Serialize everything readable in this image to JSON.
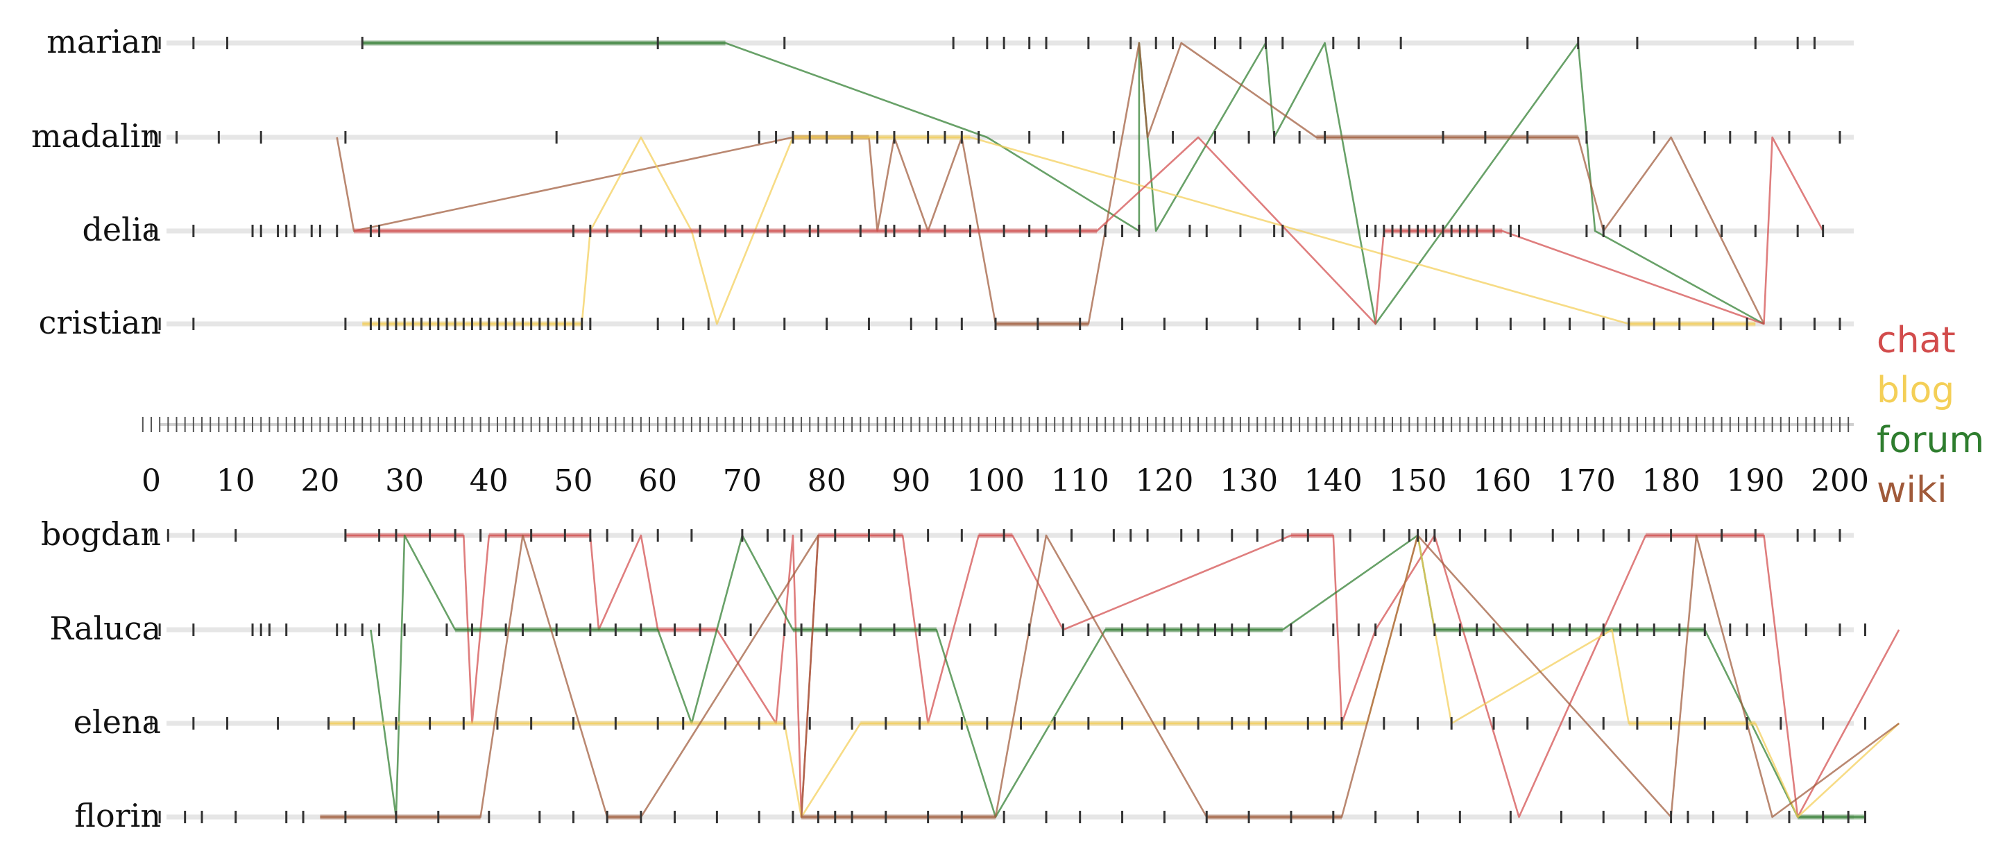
{
  "chart_data": {
    "type": "line",
    "title": "",
    "xlabel": "",
    "ylabel": "",
    "xlim": [
      0,
      206
    ],
    "x_ticks": [
      0,
      10,
      20,
      30,
      40,
      50,
      60,
      70,
      80,
      90,
      100,
      110,
      120,
      130,
      140,
      150,
      160,
      170,
      180,
      190,
      200
    ],
    "legend": {
      "placement": "right",
      "entries": [
        {
          "name": "chat",
          "color": "#d24c4c"
        },
        {
          "name": "blog",
          "color": "#f4cf57"
        },
        {
          "name": "forum",
          "color": "#2e7d2e"
        },
        {
          "name": "wiki",
          "color": "#a05a3a"
        }
      ]
    },
    "panels": [
      {
        "lanes": [
          "marian",
          "madalin",
          "delia",
          "cristian"
        ],
        "events": {
          "marian": [
            1,
            5,
            9,
            25,
            60,
            75,
            95,
            99,
            101,
            104,
            106,
            111,
            116,
            119,
            121,
            126,
            129,
            132,
            134,
            140,
            143,
            148,
            163,
            169,
            176,
            190,
            195,
            197
          ],
          "madalin": [
            0,
            1,
            3,
            8,
            13,
            23,
            48,
            72,
            74,
            76,
            78,
            80,
            83,
            86,
            88,
            92,
            94,
            96,
            98,
            104,
            108,
            114,
            121,
            126,
            130,
            133,
            136,
            139,
            153,
            158,
            163,
            170,
            178,
            184,
            187,
            190,
            194,
            200
          ],
          "delia": [
            0,
            5,
            12,
            13,
            15,
            16,
            17,
            19,
            20,
            22,
            26,
            27,
            50,
            52,
            54,
            58,
            61,
            62,
            65,
            68,
            70,
            73,
            75,
            78,
            79,
            84,
            87,
            88,
            91,
            94,
            97,
            101,
            104,
            106,
            110,
            113,
            115,
            117,
            123,
            125,
            129,
            133,
            134,
            144,
            145,
            146,
            147,
            148,
            149,
            150,
            151,
            152,
            153,
            154,
            155,
            156,
            157,
            159,
            161,
            162,
            170,
            172,
            174,
            177,
            180,
            183,
            186,
            190,
            195,
            198
          ],
          "cristian": [
            1,
            5,
            23,
            26,
            27,
            28,
            29,
            30,
            31,
            32,
            33,
            34,
            35,
            36,
            37,
            38,
            39,
            40,
            41,
            42,
            43,
            44,
            45,
            46,
            47,
            48,
            49,
            50,
            51,
            52,
            60,
            63,
            66,
            69,
            75,
            80,
            85,
            90,
            93,
            96,
            100,
            105,
            110,
            115,
            120,
            125,
            131,
            136,
            140,
            143,
            148,
            152,
            157,
            161,
            165,
            168,
            172,
            175,
            178,
            181,
            185,
            189,
            193,
            197,
            200
          ]
        },
        "links": [
          {
            "type": "forum",
            "points": [
              [
                "marian",
                25
              ],
              [
                "marian",
                68
              ],
              [
                "madalin",
                99
              ],
              [
                "delia",
                117
              ],
              [
                "marian",
                117
              ],
              [
                "madalin",
                118
              ],
              [
                "delia",
                119
              ],
              [
                "marian",
                132
              ],
              [
                "madalin",
                133
              ],
              [
                "marian",
                139
              ],
              [
                "cristian",
                145
              ],
              [
                "marian",
                169
              ],
              [
                "delia",
                171
              ],
              [
                "cristian",
                191
              ]
            ]
          },
          {
            "type": "wiki",
            "points": [
              [
                "madalin",
                22
              ],
              [
                "delia",
                24
              ],
              [
                "madalin",
                76
              ],
              [
                "madalin",
                85
              ],
              [
                "delia",
                86
              ],
              [
                "madalin",
                88
              ],
              [
                "delia",
                92
              ],
              [
                "madalin",
                96
              ],
              [
                "cristian",
                100
              ],
              [
                "cristian",
                111
              ],
              [
                "marian",
                117
              ],
              [
                "madalin",
                118
              ],
              [
                "marian",
                122
              ],
              [
                "madalin",
                138
              ],
              [
                "madalin",
                169
              ],
              [
                "delia",
                172
              ],
              [
                "madalin",
                180
              ],
              [
                "cristian",
                191
              ]
            ]
          },
          {
            "type": "blog",
            "points": [
              [
                "cristian",
                25
              ],
              [
                "cristian",
                51
              ],
              [
                "delia",
                52
              ],
              [
                "madalin",
                58
              ],
              [
                "delia",
                64
              ],
              [
                "cristian",
                67
              ],
              [
                "madalin",
                76
              ],
              [
                "madalin",
                97
              ],
              [
                "cristian",
                175
              ],
              [
                "cristian",
                190
              ]
            ]
          },
          {
            "type": "chat",
            "points": [
              [
                "delia",
                24
              ],
              [
                "delia",
                112
              ],
              [
                "madalin",
                124
              ],
              [
                "cristian",
                145
              ],
              [
                "delia",
                146
              ],
              [
                "delia",
                160
              ],
              [
                "cristian",
                191
              ],
              [
                "madalin",
                192
              ],
              [
                "delia",
                198
              ]
            ]
          }
        ]
      },
      {
        "lanes": [
          "bogdan",
          "Raluca",
          "elena",
          "florin"
        ],
        "events": {
          "bogdan": [
            0,
            2,
            5,
            10,
            23,
            27,
            29,
            33,
            36,
            39,
            42,
            45,
            49,
            52,
            54,
            57,
            60,
            64,
            70,
            73,
            75,
            77,
            81,
            85,
            88,
            92,
            96,
            101,
            105,
            109,
            114,
            116,
            118,
            122,
            124,
            128,
            131,
            134,
            137,
            142,
            146,
            149,
            150,
            151,
            152,
            155,
            158,
            161,
            166,
            169,
            172,
            175,
            180,
            186,
            190,
            195,
            197,
            200
          ],
          "Raluca": [
            1,
            5,
            12,
            13,
            14,
            16,
            22,
            23,
            25,
            27,
            30,
            35,
            38,
            42,
            44,
            48,
            52,
            55,
            58,
            62,
            65,
            68,
            71,
            75,
            77,
            80,
            84,
            88,
            91,
            94,
            97,
            100,
            104,
            108,
            111,
            115,
            118,
            120,
            122,
            124,
            126,
            128,
            130,
            135,
            140,
            143,
            145,
            148,
            152,
            155,
            157,
            159,
            163,
            166,
            168,
            170,
            172,
            174,
            176,
            178,
            181,
            184,
            187,
            189,
            191,
            196,
            200,
            203
          ],
          "elena": [
            0,
            5,
            9,
            15,
            21,
            24,
            29,
            33,
            37,
            41,
            45,
            50,
            55,
            60,
            63,
            68,
            72,
            75,
            78,
            83,
            87,
            91,
            96,
            99,
            103,
            107,
            111,
            115,
            120,
            124,
            128,
            130,
            132,
            137,
            139,
            141,
            146,
            150,
            154,
            159,
            163,
            168,
            172,
            176,
            180,
            184,
            189,
            193,
            198,
            203
          ],
          "florin": [
            1,
            4,
            6,
            10,
            16,
            18,
            23,
            29,
            34,
            40,
            46,
            50,
            54,
            58,
            62,
            67,
            72,
            76,
            79,
            81,
            83,
            87,
            92,
            96,
            101,
            106,
            110,
            115,
            120,
            125,
            130,
            135,
            140,
            145,
            150,
            155,
            161,
            167,
            172,
            177,
            180,
            182,
            185,
            189,
            194,
            198,
            201,
            203
          ]
        },
        "links": [
          {
            "type": "chat",
            "points": [
              [
                "bogdan",
                23
              ],
              [
                "bogdan",
                37
              ],
              [
                "elena",
                38
              ],
              [
                "bogdan",
                40
              ],
              [
                "bogdan",
                52
              ],
              [
                "Raluca",
                53
              ],
              [
                "bogdan",
                58
              ],
              [
                "Raluca",
                60
              ],
              [
                "Raluca",
                67
              ],
              [
                "elena",
                74
              ],
              [
                "bogdan",
                76
              ],
              [
                "florin",
                77
              ],
              [
                "bogdan",
                79
              ],
              [
                "bogdan",
                89
              ],
              [
                "elena",
                92
              ],
              [
                "bogdan",
                98
              ],
              [
                "bogdan",
                102
              ],
              [
                "Raluca",
                108
              ],
              [
                "bogdan",
                135
              ],
              [
                "bogdan",
                140
              ],
              [
                "elena",
                141
              ],
              [
                "Raluca",
                145
              ],
              [
                "bogdan",
                152
              ],
              [
                "florin",
                162
              ],
              [
                "bogdan",
                177
              ],
              [
                "bogdan",
                191
              ],
              [
                "florin",
                195
              ],
              [
                "Raluca",
                207
              ]
            ]
          },
          {
            "type": "forum",
            "points": [
              [
                "Raluca",
                26
              ],
              [
                "florin",
                29
              ],
              [
                "bogdan",
                30
              ],
              [
                "Raluca",
                36
              ],
              [
                "Raluca",
                52
              ],
              [
                "Raluca",
                60
              ],
              [
                "elena",
                64
              ],
              [
                "bogdan",
                70
              ],
              [
                "Raluca",
                76
              ],
              [
                "Raluca",
                93
              ],
              [
                "florin",
                100
              ],
              [
                "Raluca",
                113
              ],
              [
                "Raluca",
                134
              ],
              [
                "bogdan",
                150
              ],
              [
                "Raluca",
                152
              ],
              [
                "Raluca",
                176
              ],
              [
                "Raluca",
                184
              ],
              [
                "florin",
                195
              ],
              [
                "florin",
                203
              ]
            ]
          },
          {
            "type": "blog",
            "points": [
              [
                "elena",
                21
              ],
              [
                "elena",
                75
              ],
              [
                "florin",
                77
              ],
              [
                "elena",
                84
              ],
              [
                "elena",
                144
              ],
              [
                "bogdan",
                150
              ],
              [
                "elena",
                154
              ],
              [
                "Raluca",
                173
              ],
              [
                "elena",
                175
              ],
              [
                "elena",
                190
              ],
              [
                "florin",
                195
              ],
              [
                "elena",
                207
              ]
            ]
          },
          {
            "type": "wiki",
            "points": [
              [
                "florin",
                20
              ],
              [
                "florin",
                39
              ],
              [
                "bogdan",
                44
              ],
              [
                "florin",
                54
              ],
              [
                "florin",
                58
              ],
              [
                "elena",
                65
              ],
              [
                "bogdan",
                79
              ],
              [
                "florin",
                77
              ],
              [
                "florin",
                100
              ],
              [
                "bogdan",
                106
              ],
              [
                "florin",
                125
              ],
              [
                "florin",
                141
              ],
              [
                "bogdan",
                150
              ],
              [
                "florin",
                180
              ],
              [
                "bogdan",
                183
              ],
              [
                "florin",
                192
              ],
              [
                "elena",
                207
              ]
            ]
          }
        ]
      }
    ]
  }
}
